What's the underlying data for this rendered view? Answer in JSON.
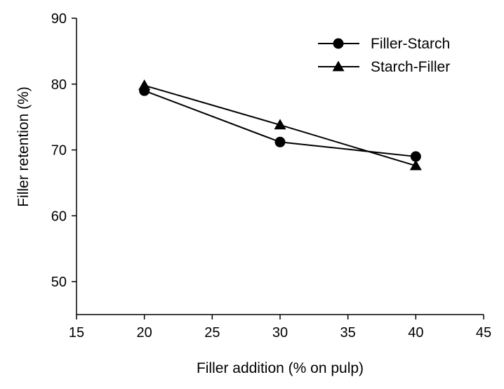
{
  "chart_data": {
    "type": "line",
    "title": "",
    "xlabel": "Filler addition (% on pulp)",
    "ylabel": "Filler retention (%)",
    "xlim": [
      15,
      45
    ],
    "ylim": [
      45,
      90
    ],
    "xticks": [
      15,
      20,
      25,
      30,
      35,
      40,
      45
    ],
    "yticks": [
      50,
      60,
      70,
      80,
      90
    ],
    "grid": false,
    "legend_position": "top-right",
    "series": [
      {
        "name": "Filler-Starch",
        "marker": "circle",
        "x": [
          20,
          30,
          40
        ],
        "y": [
          79.0,
          71.2,
          69.0
        ]
      },
      {
        "name": "Starch-Filler",
        "marker": "triangle",
        "x": [
          20,
          30,
          40
        ],
        "y": [
          79.8,
          73.8,
          67.6
        ]
      }
    ]
  }
}
